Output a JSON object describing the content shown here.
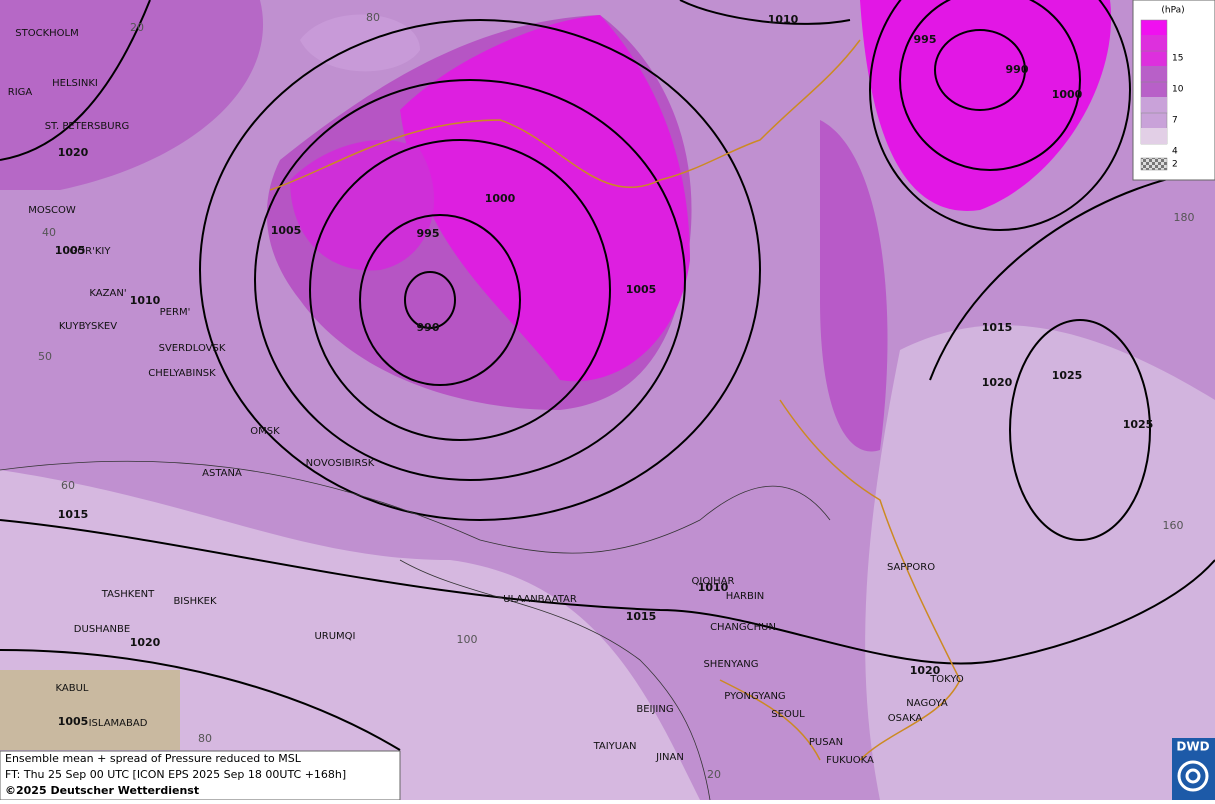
{
  "map": {
    "isobar_labels": [
      1010,
      995,
      990,
      1000,
      1020,
      1000,
      1005,
      995,
      1005,
      990,
      1010,
      1005,
      1015,
      1020,
      1025,
      1025,
      1015,
      1010,
      1015,
      1020,
      1020,
      1005
    ],
    "cities": [
      "STOCKHOLM",
      "HELSINKI",
      "RIGA",
      "ST. PETERSBURG",
      "MOSCOW",
      "GOR'KIY",
      "KAZAN'",
      "PERM'",
      "KUYBYSKEV",
      "SVERDLOVSK",
      "CHELYABINSK",
      "OMSK",
      "NOVOSIBIRSK",
      "ASTANA",
      "TASHKENT",
      "BISHKEK",
      "DUSHANBE",
      "URUMQI",
      "KABUL",
      "ISLAMABAD",
      "ULAANBAATAR",
      "QIQIHAR",
      "HARBIN",
      "CHANGCHUN",
      "SHENYANG",
      "PYONGYANG",
      "SEOUL",
      "BEIJING",
      "TAIYUAN",
      "JINAN",
      "PUSAN",
      "FUKUOKA",
      "SAPPORO",
      "TOKYO",
      "NAGOYA",
      "OSAKA"
    ],
    "graticule_labels": [
      20,
      80,
      40,
      50,
      60,
      100,
      80,
      180,
      160,
      20
    ],
    "legend": {
      "unit": "(hPa)",
      "levels": [
        15,
        10,
        7,
        4,
        2
      ]
    },
    "footer": [
      "Ensemble mean + spread of Pressure reduced to MSL",
      "FT: Thu 25 Sep 00 UTC [ICON EPS 2025 Sep 18 00UTC +168h]",
      "©2025 Deutscher Wetterdienst"
    ],
    "logo": "DWD"
  }
}
